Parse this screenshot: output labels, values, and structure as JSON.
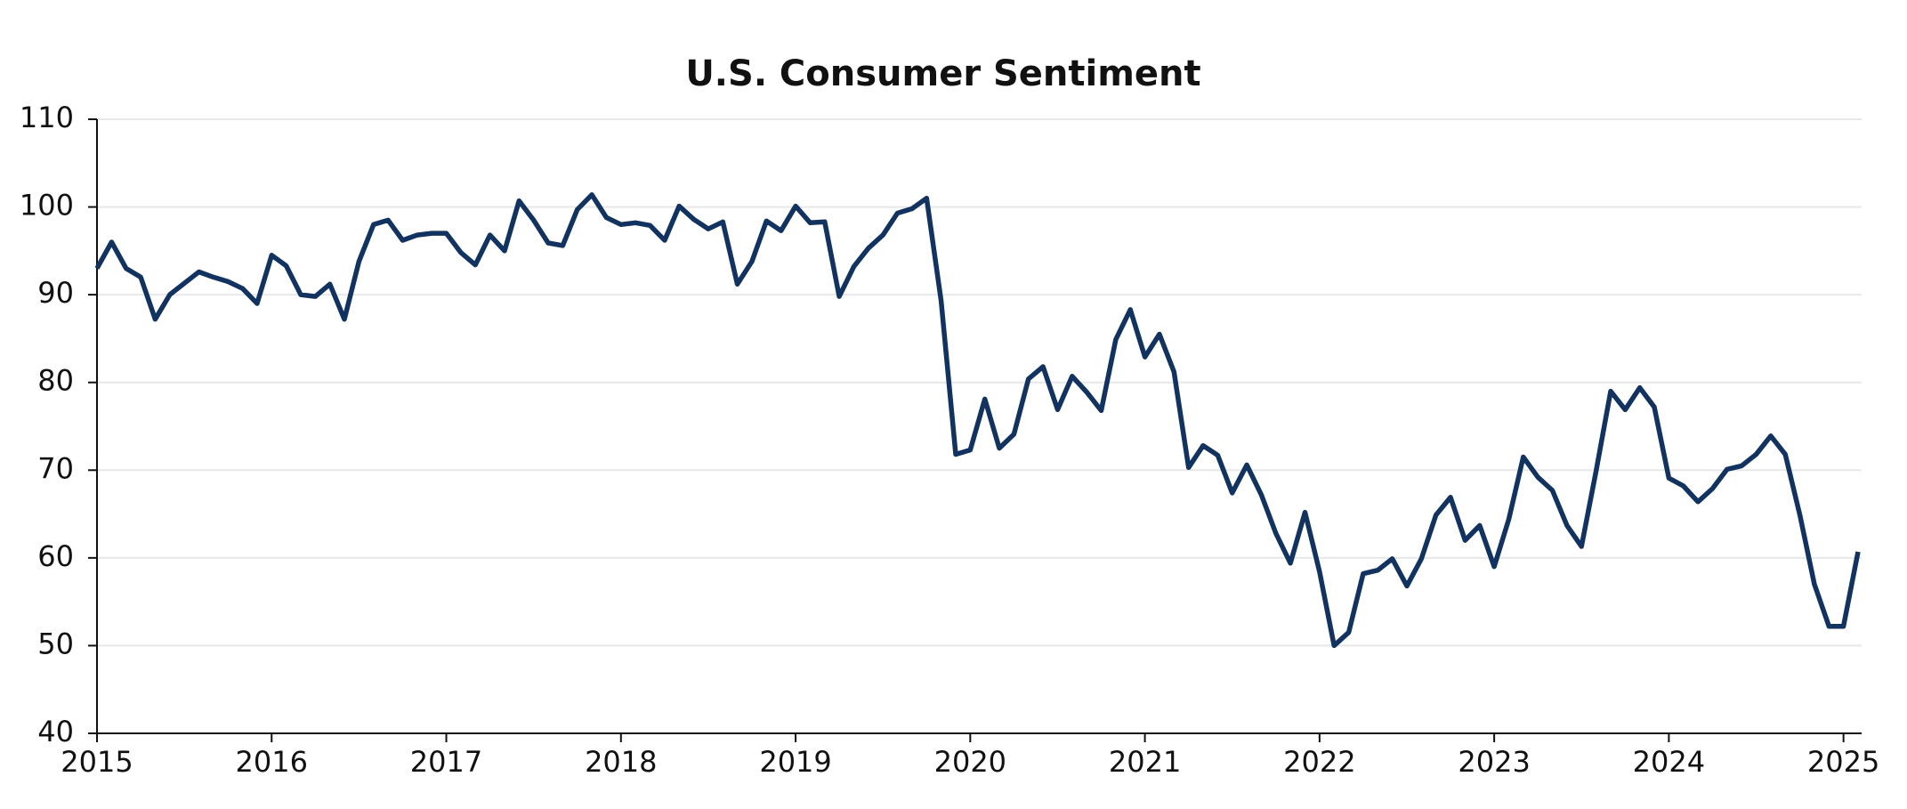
{
  "chart_data": {
    "type": "line",
    "title": "U.S. Consumer Sentiment",
    "x": [
      "2015-01",
      "2015-02",
      "2015-03",
      "2015-04",
      "2015-05",
      "2015-06",
      "2015-07",
      "2015-08",
      "2015-09",
      "2015-10",
      "2015-11",
      "2015-12",
      "2016-01",
      "2016-02",
      "2016-03",
      "2016-04",
      "2016-05",
      "2016-06",
      "2016-07",
      "2016-08",
      "2016-09",
      "2016-10",
      "2016-11",
      "2016-12",
      "2017-01",
      "2017-02",
      "2017-03",
      "2017-04",
      "2017-05",
      "2017-06",
      "2017-07",
      "2017-08",
      "2017-09",
      "2017-10",
      "2017-11",
      "2017-12",
      "2018-01",
      "2018-02",
      "2018-03",
      "2018-04",
      "2018-05",
      "2018-06",
      "2018-07",
      "2018-08",
      "2018-09",
      "2018-10",
      "2018-11",
      "2018-12",
      "2019-01",
      "2019-02",
      "2019-03",
      "2019-04",
      "2019-05",
      "2019-06",
      "2019-07",
      "2019-08",
      "2019-09",
      "2019-10",
      "2019-11",
      "2019-12",
      "2020-01",
      "2020-02",
      "2020-03",
      "2020-04",
      "2020-05",
      "2020-06",
      "2020-07",
      "2020-08",
      "2020-09",
      "2020-10",
      "2020-11",
      "2020-12",
      "2021-01",
      "2021-02",
      "2021-03",
      "2021-04",
      "2021-05",
      "2021-06",
      "2021-07",
      "2021-08",
      "2021-09",
      "2021-10",
      "2021-11",
      "2021-12",
      "2022-01",
      "2022-02",
      "2022-03",
      "2022-04",
      "2022-05",
      "2022-06",
      "2022-07",
      "2022-08",
      "2022-09",
      "2022-10",
      "2022-11",
      "2022-12",
      "2023-01",
      "2023-02",
      "2023-03",
      "2023-04",
      "2023-05",
      "2023-06",
      "2023-07",
      "2023-08",
      "2023-09",
      "2023-10",
      "2023-11",
      "2023-12",
      "2024-01",
      "2024-02",
      "2024-03",
      "2024-04",
      "2024-05",
      "2024-06",
      "2024-07",
      "2024-08",
      "2024-09",
      "2024-10",
      "2024-11",
      "2024-12",
      "2025-01",
      "2025-02"
    ],
    "series": [
      {
        "color": "#12335f",
        "values": [
          93,
          96,
          93,
          92,
          87.2,
          90,
          91.3,
          92.6,
          92,
          91.5,
          90.7,
          89,
          94.5,
          93.3,
          90,
          89.8,
          91.2,
          87.2,
          93.8,
          98,
          98.5,
          96.2,
          96.8,
          97,
          97,
          94.8,
          93.4,
          96.8,
          95,
          100.7,
          98.5,
          95.9,
          95.6,
          99.7,
          101.4,
          98.8,
          98,
          98.2,
          97.9,
          96.2,
          100.1,
          98.6,
          97.5,
          98.3,
          91.2,
          93.8,
          98.4,
          97.3,
          100.1,
          98.2,
          98.3,
          89.8,
          93.2,
          95.3,
          96.8,
          99.3,
          99.8,
          101,
          89.3,
          71.8,
          72.3,
          78.1,
          72.5,
          74.1,
          80.4,
          81.8,
          76.9,
          80.7,
          78.9,
          76.8,
          84.9,
          88.3,
          82.9,
          85.5,
          81.2,
          70.3,
          72.8,
          71.7,
          67.4,
          70.6,
          67.2,
          62.8,
          59.4,
          65.2,
          58.4,
          50,
          51.5,
          58.2,
          58.6,
          59.9,
          56.8,
          59.9,
          64.9,
          66.9,
          62,
          63.7,
          59,
          64.4,
          71.5,
          69.2,
          67.7,
          63.7,
          61.3,
          69.9,
          79,
          76.9,
          79.4,
          77.2,
          69.1,
          68.2,
          66.4,
          67.9,
          70.1,
          70.5,
          71.8,
          73.9,
          71.8,
          64.9,
          57,
          52.2,
          52.2,
          60.7
        ]
      }
    ],
    "xlim": [
      "2015-01",
      "2025-02"
    ],
    "xticks": [
      {
        "value": "2015-01",
        "label": "2015"
      },
      {
        "value": "2016-01",
        "label": "2016"
      },
      {
        "value": "2017-01",
        "label": "2017"
      },
      {
        "value": "2018-01",
        "label": "2018"
      },
      {
        "value": "2019-01",
        "label": "2019"
      },
      {
        "value": "2020-01",
        "label": "2020"
      },
      {
        "value": "2021-01",
        "label": "2021"
      },
      {
        "value": "2022-01",
        "label": "2022"
      },
      {
        "value": "2023-01",
        "label": "2023"
      },
      {
        "value": "2024-01",
        "label": "2024"
      },
      {
        "value": "2025-01",
        "label": "2025"
      }
    ],
    "ylim": [
      40,
      110
    ],
    "yticks": [
      40,
      50,
      60,
      70,
      80,
      90,
      100,
      110
    ],
    "grid": true
  }
}
